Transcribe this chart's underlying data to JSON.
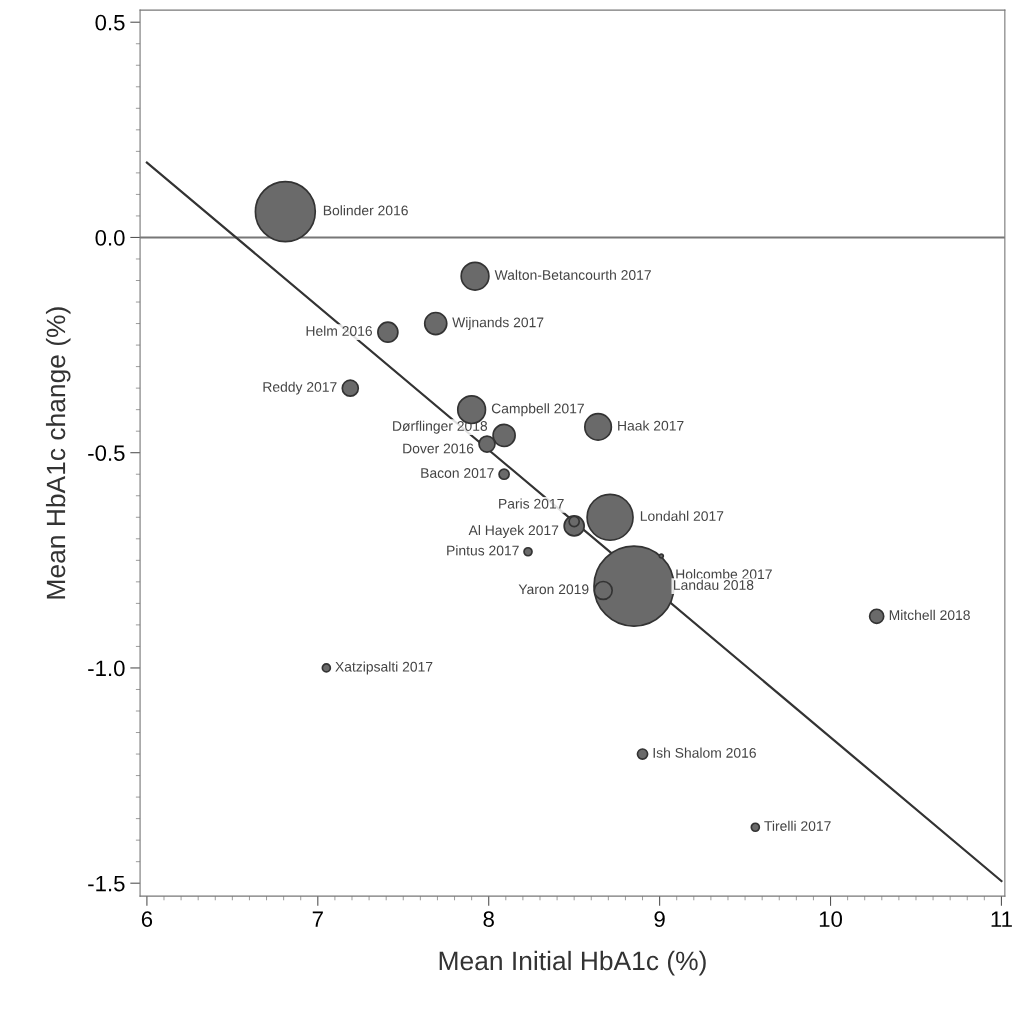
{
  "chart_data": {
    "type": "bubble",
    "xlabel": "Mean Initial HbA1c (%)",
    "ylabel": "Mean HbA1c change (%)",
    "xlim": [
      5.96,
      11.02
    ],
    "ylim": [
      -1.53,
      0.528
    ],
    "xticks": [
      6,
      7,
      8,
      9,
      10,
      11
    ],
    "yticks": [
      {
        "value": 0.5,
        "label": "0.5"
      },
      {
        "value": 0.0,
        "label": "0.0"
      },
      {
        "value": -0.5,
        "label": "-0.5"
      },
      {
        "value": -1.0,
        "label": "-1.0"
      },
      {
        "value": -1.5,
        "label": "-1.5"
      }
    ],
    "grid": false,
    "legend": false,
    "ref_lines": [
      {
        "axis": "y",
        "value": 0,
        "color": "#777777"
      }
    ],
    "series": [
      {
        "color": "#6a6a6a",
        "x": [
          6.81,
          7.92,
          7.41,
          7.69,
          7.19,
          7.9,
          8.09,
          7.99,
          8.09,
          8.64,
          8.5,
          8.5,
          8.71,
          8.23,
          8.67,
          9.01,
          8.85,
          10.27,
          7.05,
          8.9,
          9.56
        ],
        "values": [
          0.06,
          -0.09,
          -0.22,
          -0.2,
          -0.35,
          -0.4,
          -0.46,
          -0.48,
          -0.55,
          -0.44,
          -0.66,
          -0.67,
          -0.65,
          -0.73,
          -0.82,
          -0.74,
          -0.81,
          -0.88,
          -1.0,
          -1.2,
          -1.37
        ],
        "sizes": [
          0.56,
          0.12,
          0.0625,
          0.076,
          0.04,
          0.12,
          0.076,
          0.04,
          0.016,
          0.11,
          0.016,
          0.0625,
          0.33,
          0.01,
          0.05,
          0.0025,
          1,
          0.031,
          0.01,
          0.016,
          0.01
        ]
      },
      {
        "type": "line",
        "color": "#333333",
        "x": [
          6,
          11
        ],
        "values": [
          0.174,
          -1.495
        ]
      }
    ],
    "annotations": [
      {
        "text": "Bolinder 2016",
        "x": 6.81,
        "y": 0.06
      },
      {
        "text": "Walton-Betancourth 2017",
        "x": 7.92,
        "y": -0.09
      },
      {
        "text": "Helm 2016",
        "x": 7.41,
        "y": -0.22
      },
      {
        "text": "Wijnands 2017",
        "x": 7.69,
        "y": -0.2
      },
      {
        "text": "Reddy 2017",
        "x": 7.19,
        "y": -0.35
      },
      {
        "text": "Campbell 2017",
        "x": 7.9,
        "y": -0.4
      },
      {
        "text": "Dørflinger 2018",
        "x": 8.09,
        "y": -0.46
      },
      {
        "text": "Dover 2016",
        "x": 7.99,
        "y": -0.48
      },
      {
        "text": "Bacon 2017",
        "x": 8.09,
        "y": -0.55
      },
      {
        "text": "Haak 2017",
        "x": 8.64,
        "y": -0.44
      },
      {
        "text": "Paris 2017",
        "x": 8.5,
        "y": -0.66
      },
      {
        "text": "Al Hayek 2017",
        "x": 8.5,
        "y": -0.67
      },
      {
        "text": "Londahl 2017",
        "x": 8.71,
        "y": -0.65
      },
      {
        "text": "Pintus 2017",
        "x": 8.23,
        "y": -0.73
      },
      {
        "text": "Yaron 2019",
        "x": 8.67,
        "y": -0.82
      },
      {
        "text": "Holcombe 2017",
        "x": 9.01,
        "y": -0.74
      },
      {
        "text": "Landau 2018",
        "x": 8.85,
        "y": -0.81
      },
      {
        "text": "Mitchell 2018",
        "x": 10.27,
        "y": -0.88
      },
      {
        "text": "Xatzipsalti 2017",
        "x": 7.05,
        "y": -1.0
      },
      {
        "text": "Ish Shalom 2016",
        "x": 8.9,
        "y": -1.2
      },
      {
        "text": "Tirelli 2017",
        "x": 9.56,
        "y": -1.37
      }
    ]
  }
}
